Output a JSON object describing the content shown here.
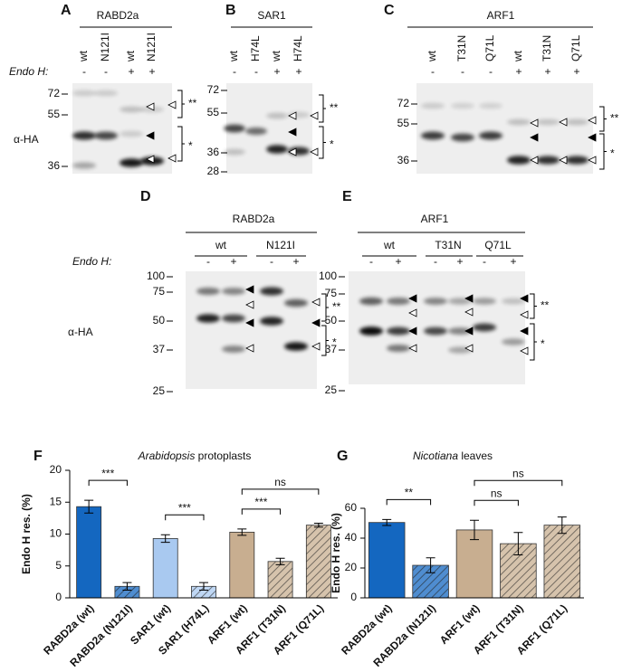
{
  "antibody": "α-HA",
  "endo_label": "Endo H:",
  "band_marks": [
    "**",
    "*"
  ],
  "blots": [
    {
      "panel": "A",
      "protein": "RABD2a",
      "lanes": [
        "wt",
        "N121I",
        "wt",
        "N121I"
      ],
      "endo": [
        "-",
        "-",
        "+",
        "+"
      ],
      "markers": [
        72,
        55,
        36
      ]
    },
    {
      "panel": "B",
      "protein": "SAR1",
      "lanes": [
        "wt",
        "H74L",
        "wt",
        "H74L"
      ],
      "endo": [
        "-",
        "-",
        "+",
        "+"
      ],
      "markers": [
        72,
        55,
        36,
        28
      ]
    },
    {
      "panel": "C",
      "protein": "ARF1",
      "lanes": [
        "wt",
        "T31N",
        "Q71L",
        "wt",
        "T31N",
        "Q71L"
      ],
      "endo": [
        "-",
        "-",
        "-",
        "+",
        "+",
        "+"
      ],
      "markers": [
        72,
        55,
        36
      ]
    },
    {
      "panel": "D",
      "protein": "RABD2a",
      "groups": [
        "wt",
        "N121I"
      ],
      "endo": [
        "-",
        "+",
        "-",
        "+"
      ],
      "markers": [
        100,
        75,
        50,
        37,
        25
      ]
    },
    {
      "panel": "E",
      "protein": "ARF1",
      "groups": [
        "wt",
        "T31N",
        "Q71L"
      ],
      "endo": [
        "-",
        "+",
        "-",
        "+",
        "-",
        "+"
      ],
      "markers": [
        100,
        75,
        50,
        37,
        25
      ]
    }
  ],
  "chart_data": [
    {
      "type": "bar",
      "panel": "F",
      "title": {
        "species": "Arabidopsis",
        "rest": "protoplasts"
      },
      "y_label": "Endo H res. (%)",
      "categories": [
        "RABD2a (wt)",
        "RABD2a (N121I)",
        "SAR1 (wt)",
        "SAR1 (H74L)",
        "ARF1 (wt)",
        "ARF1 (T31N)",
        "ARF1 (Q71L)"
      ],
      "values": [
        14.3,
        1.8,
        9.3,
        1.8,
        10.3,
        5.7,
        11.4
      ],
      "errors": [
        1.0,
        0.6,
        0.6,
        0.6,
        0.5,
        0.5,
        0.3
      ],
      "colors": [
        "#1467c0",
        "#1467c0",
        "#a9c9f0",
        "#a9c9f0",
        "#c8ae90",
        "#c8ae90",
        "#c8ae90"
      ],
      "hatched": [
        false,
        true,
        false,
        true,
        false,
        true,
        true
      ],
      "ylim": [
        0,
        20
      ],
      "yticks": [
        0,
        5,
        10,
        15,
        20
      ],
      "comparisons": [
        {
          "label": "***",
          "from": "RABD2a (wt)",
          "to": "RABD2a (N121I)"
        },
        {
          "label": "***",
          "from": "SAR1 (wt)",
          "to": "SAR1 (H74L)"
        },
        {
          "label": "***",
          "from": "ARF1 (wt)",
          "to": "ARF1 (T31N)"
        },
        {
          "label": "ns",
          "from": "ARF1 (wt)",
          "to": "ARF1 (Q71L)"
        }
      ]
    },
    {
      "type": "bar",
      "panel": "G",
      "title": {
        "species": "Nicotiana",
        "rest": "leaves"
      },
      "y_label": "Endo H res. (%)",
      "categories": [
        "RABD2a (wt)",
        "RABD2a (N121I)",
        "ARF1 (wt)",
        "ARF1 (T31N)",
        "ARF1 (Q71L)"
      ],
      "values": [
        50.5,
        21.8,
        45.5,
        36.3,
        48.7
      ],
      "errors": [
        2.0,
        5.0,
        6.5,
        7.5,
        5.5
      ],
      "colors": [
        "#1467c0",
        "#1467c0",
        "#c8ae90",
        "#c8ae90",
        "#c8ae90"
      ],
      "hatched": [
        false,
        true,
        false,
        true,
        true
      ],
      "ylim": [
        0,
        60
      ],
      "yticks": [
        0,
        20,
        40,
        60
      ],
      "comparisons": [
        {
          "label": "**",
          "from": "RABD2a (wt)",
          "to": "RABD2a (N121I)"
        },
        {
          "label": "ns",
          "from": "ARF1 (wt)",
          "to": "ARF1 (T31N)"
        },
        {
          "label": "ns",
          "from": "ARF1 (wt)",
          "to": "ARF1 (Q71L)"
        }
      ]
    }
  ]
}
